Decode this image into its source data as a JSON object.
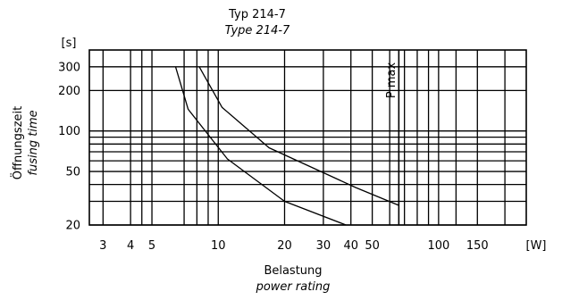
{
  "chart_data": {
    "type": "line",
    "title": "Typ 214-7",
    "subtitle": "Type 214-7",
    "xlabel": "Belastung",
    "xlabel_en": "power rating",
    "ylabel": "Öffnungszeit",
    "ylabel_en": "fusing time",
    "yunit": "[s]",
    "xunit": "[W]",
    "xscale": "log",
    "yscale": "log",
    "xlim": [
      2.6,
      250
    ],
    "ylim": [
      20,
      400
    ],
    "grid": true,
    "x_tick_labels": [
      {
        "value": 3,
        "label": "3"
      },
      {
        "value": 4,
        "label": "4"
      },
      {
        "value": 5,
        "label": "5"
      },
      {
        "value": 10,
        "label": "10"
      },
      {
        "value": 20,
        "label": "20"
      },
      {
        "value": 30,
        "label": "30"
      },
      {
        "value": 40,
        "label": "40"
      },
      {
        "value": 50,
        "label": "50"
      },
      {
        "value": 100,
        "label": "100"
      },
      {
        "value": 150,
        "label": "150"
      }
    ],
    "y_tick_labels": [
      {
        "value": 300,
        "label": "300"
      },
      {
        "value": 200,
        "label": "200"
      },
      {
        "value": 100,
        "label": "100"
      },
      {
        "value": 50,
        "label": "50"
      },
      {
        "value": 20,
        "label": "20"
      }
    ],
    "x_gridlines": [
      3,
      4,
      4.5,
      5,
      7,
      8,
      9,
      10,
      20,
      30,
      40,
      50,
      60,
      70,
      80,
      90,
      100,
      120,
      150,
      200
    ],
    "y_gridlines": [
      20,
      30,
      40,
      50,
      60,
      70,
      80,
      90,
      100,
      200,
      300
    ],
    "pmax": {
      "x": 66,
      "label": "P max"
    },
    "series": [
      {
        "x": [
          6.4,
          7.3,
          11,
          20,
          38
        ],
        "y": [
          300,
          145,
          62,
          30,
          20
        ]
      },
      {
        "x": [
          8.2,
          10.4,
          17,
          42,
          66
        ],
        "y": [
          300,
          150,
          75,
          38,
          28
        ]
      }
    ]
  }
}
